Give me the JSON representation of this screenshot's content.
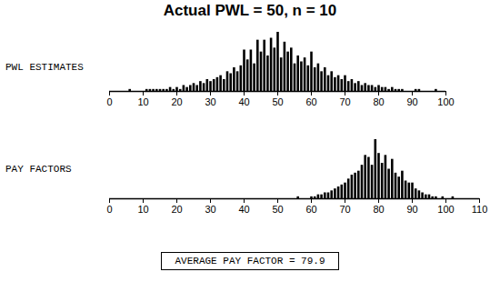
{
  "chart_data": [
    {
      "type": "histogram",
      "title": "Actual PWL = 50, n = 10",
      "ylabel": "PWL ESTIMATES",
      "color": "#000000",
      "tick_labels": "x",
      "xlim": [
        0,
        100
      ],
      "xticks": [
        0,
        10,
        20,
        30,
        40,
        50,
        60,
        70,
        80,
        90,
        100
      ],
      "ylim": [
        0,
        30
      ],
      "x": [
        6,
        11,
        12,
        13,
        14,
        15,
        16,
        17,
        18,
        19,
        20,
        21,
        22,
        23,
        24,
        25,
        26,
        27,
        28,
        29,
        30,
        31,
        32,
        33,
        34,
        35,
        36,
        37,
        38,
        39,
        40,
        41,
        42,
        43,
        44,
        45,
        46,
        47,
        48,
        49,
        50,
        51,
        52,
        53,
        54,
        55,
        56,
        57,
        58,
        59,
        60,
        61,
        62,
        63,
        64,
        65,
        66,
        67,
        68,
        69,
        70,
        71,
        72,
        73,
        74,
        75,
        76,
        77,
        78,
        79,
        80,
        81,
        82,
        83,
        84,
        85,
        86,
        87,
        91,
        92,
        97
      ],
      "values": [
        1,
        1,
        1,
        1,
        1,
        1,
        1,
        1,
        2,
        1,
        2,
        1,
        3,
        2,
        3,
        4,
        3,
        5,
        4,
        6,
        5,
        6,
        7,
        8,
        6,
        10,
        9,
        12,
        10,
        13,
        21,
        16,
        21,
        14,
        26,
        20,
        26,
        18,
        27,
        22,
        30,
        17,
        25,
        20,
        22,
        14,
        18,
        15,
        17,
        13,
        20,
        12,
        14,
        10,
        12,
        8,
        10,
        7,
        8,
        6,
        8,
        5,
        6,
        4,
        5,
        3,
        4,
        3,
        3,
        2,
        3,
        2,
        2,
        1,
        2,
        1,
        1,
        1,
        1,
        1,
        1
      ]
    },
    {
      "type": "histogram",
      "ylabel": "PAY FACTORS",
      "color": "#000000",
      "annotation": "AVERAGE PAY FACTOR = 79.9",
      "tick_labels": "x",
      "xlim": [
        0,
        110
      ],
      "xticks": [
        0,
        10,
        20,
        30,
        40,
        50,
        60,
        70,
        80,
        90,
        100,
        110
      ],
      "ylim": [
        0,
        30
      ],
      "x": [
        56,
        60,
        61,
        62,
        63,
        64,
        65,
        66,
        67,
        68,
        69,
        70,
        71,
        72,
        73,
        74,
        75,
        76,
        77,
        78,
        79,
        80,
        81,
        82,
        83,
        84,
        85,
        86,
        87,
        88,
        89,
        90,
        91,
        92,
        93,
        94,
        95,
        96,
        97,
        99,
        102
      ],
      "values": [
        1,
        1,
        1,
        2,
        2,
        3,
        3,
        4,
        5,
        6,
        7,
        8,
        10,
        12,
        13,
        14,
        17,
        22,
        21,
        17,
        30,
        23,
        18,
        22,
        15,
        20,
        13,
        11,
        14,
        9,
        8,
        8,
        5,
        4,
        3,
        2,
        2,
        1,
        1,
        1,
        1
      ]
    }
  ]
}
